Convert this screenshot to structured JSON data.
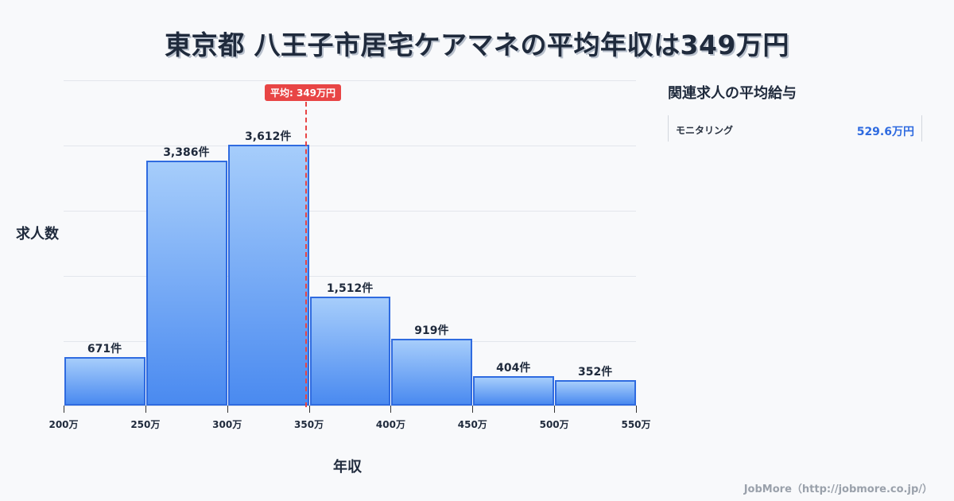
{
  "title": "東京都 八王子市居宅ケアマネの平均年収は349万円",
  "chart": {
    "ylabel": "求人数",
    "xlabel": "年収",
    "average_badge": "平均: 349万円",
    "bar_labels": [
      "671件",
      "3,386件",
      "3,612件",
      "1,512件",
      "919件",
      "404件",
      "352件"
    ],
    "tick_labels": [
      "200万",
      "250万",
      "300万",
      "350万",
      "400万",
      "450万",
      "500万",
      "550万"
    ]
  },
  "sidebar": {
    "title": "関連求人の平均給与",
    "items": [
      {
        "name": "モニタリング",
        "value": "529.6万円"
      }
    ]
  },
  "footer": "JobMore（http://jobmore.co.jp/）",
  "colors": {
    "bar_top": "#a6cdfb",
    "bar_bottom": "#4a8af0",
    "bar_border": "#2f6be0",
    "average_line": "#e84545",
    "accent_value": "#2f6be0"
  },
  "chart_data": {
    "type": "bar",
    "title": "東京都 八王子市居宅ケアマネの平均年収は349万円",
    "xlabel": "年収",
    "ylabel": "求人数",
    "categories": [
      "200万-250万",
      "250万-300万",
      "300万-350万",
      "350万-400万",
      "400万-450万",
      "450万-500万",
      "500万-550万"
    ],
    "values": [
      671,
      3386,
      3612,
      1512,
      919,
      404,
      352
    ],
    "x_ticks": [
      "200万",
      "250万",
      "300万",
      "350万",
      "400万",
      "450万",
      "500万",
      "550万"
    ],
    "ylim": [
      0,
      4500
    ],
    "grid": true,
    "annotations": [
      {
        "type": "vline",
        "x": 349,
        "label": "平均: 349万円",
        "color": "#e84545",
        "style": "dashed"
      }
    ],
    "legend": null
  }
}
